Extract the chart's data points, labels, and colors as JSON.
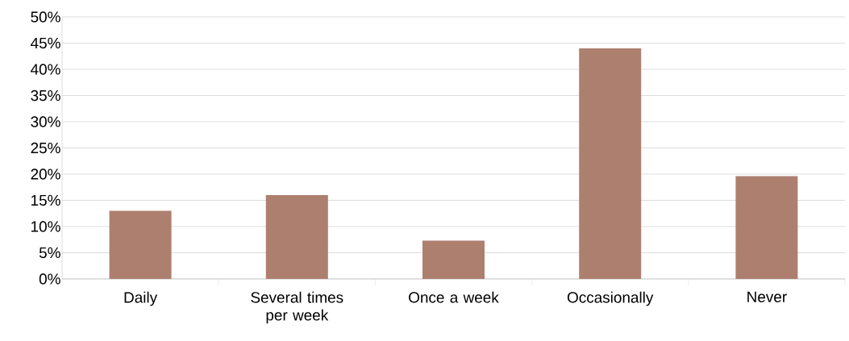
{
  "chart_data": {
    "type": "bar",
    "categories": [
      "Daily",
      "Several times per week",
      "Once a week",
      "Occasionally",
      "Never"
    ],
    "values": [
      13,
      16,
      7.3,
      44,
      19.6
    ],
    "color": "#ad7f6f",
    "ylim": [
      0,
      50
    ],
    "yticks": [
      {
        "value": 0,
        "label": "0%"
      },
      {
        "value": 5,
        "label": "5%"
      },
      {
        "value": 10,
        "label": "10%"
      },
      {
        "value": 15,
        "label": "15%"
      },
      {
        "value": 20,
        "label": "20%"
      },
      {
        "value": 25,
        "label": "25%"
      },
      {
        "value": 30,
        "label": "30%"
      },
      {
        "value": 35,
        "label": "35%"
      },
      {
        "value": 40,
        "label": "40%"
      },
      {
        "value": 45,
        "label": "45%"
      },
      {
        "value": 50,
        "label": "50%"
      }
    ],
    "grid": "y"
  }
}
